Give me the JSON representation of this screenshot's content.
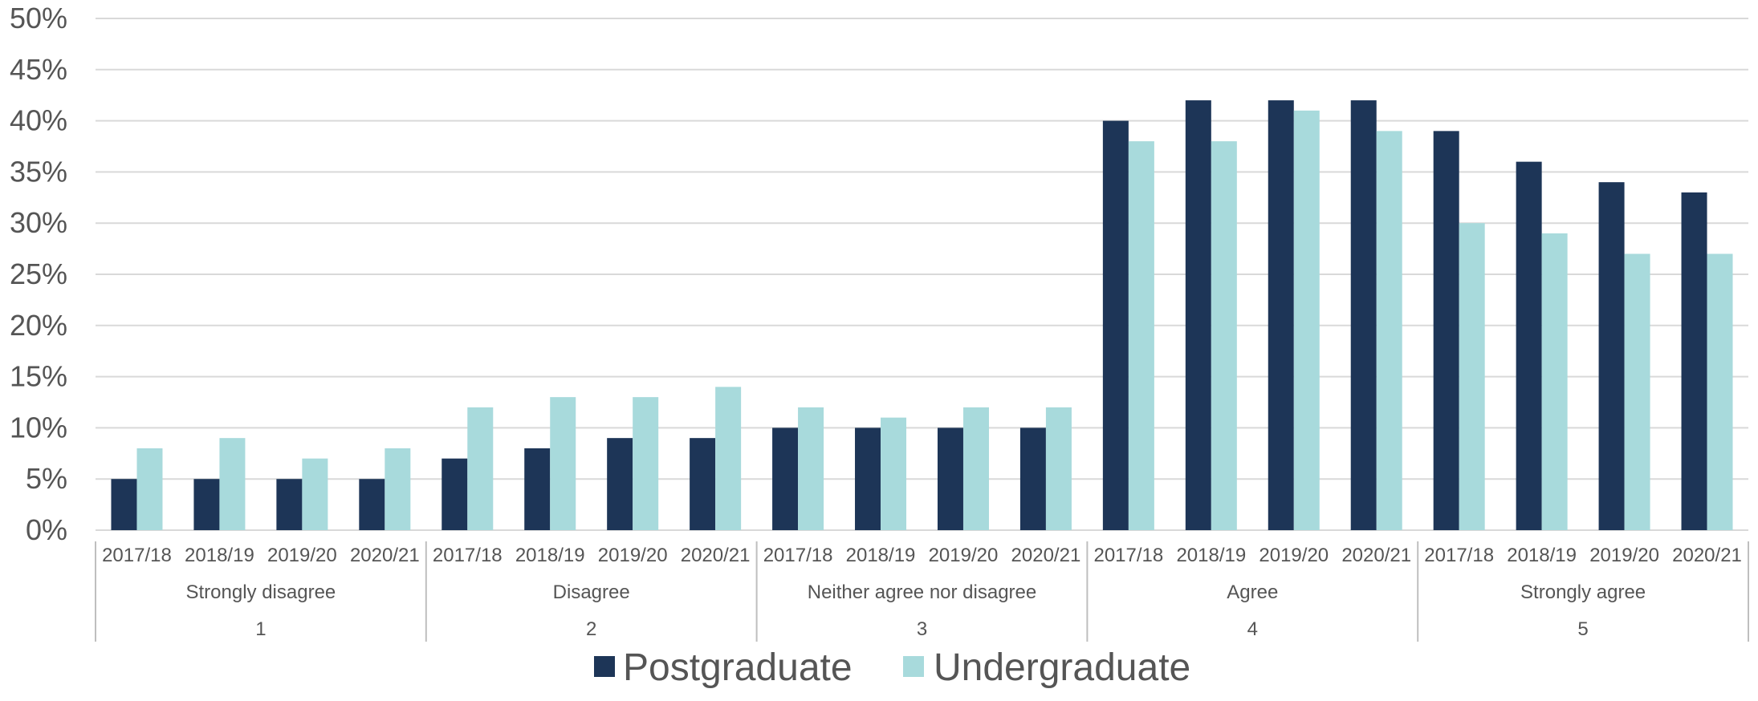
{
  "chart_data": {
    "type": "bar",
    "title": "",
    "xlabel": "",
    "ylabel": "",
    "ylim": [
      0,
      50
    ],
    "y_ticks": [
      "0%",
      "5%",
      "10%",
      "15%",
      "20%",
      "25%",
      "30%",
      "35%",
      "40%",
      "45%",
      "50%"
    ],
    "grid": true,
    "legend_position": "bottom",
    "groups": [
      {
        "label": "Strongly disagree",
        "number": "1"
      },
      {
        "label": "Disagree",
        "number": "2"
      },
      {
        "label": "Neither agree nor disagree",
        "number": "3"
      },
      {
        "label": "Agree",
        "number": "4"
      },
      {
        "label": "Strongly agree",
        "number": "5"
      }
    ],
    "years": [
      "2017/18",
      "2018/19",
      "2019/20",
      "2020/21"
    ],
    "series": [
      {
        "name": "Postgraduate",
        "color": "#1d3557",
        "values": [
          5,
          5,
          5,
          5,
          7,
          8,
          9,
          9,
          10,
          10,
          10,
          10,
          40,
          42,
          42,
          42,
          39,
          36,
          34,
          33
        ]
      },
      {
        "name": "Undergraduate",
        "color": "#a8dadc",
        "values": [
          8,
          9,
          7,
          8,
          12,
          13,
          13,
          14,
          12,
          11,
          12,
          12,
          38,
          38,
          41,
          39,
          30,
          29,
          27,
          27
        ]
      }
    ]
  }
}
